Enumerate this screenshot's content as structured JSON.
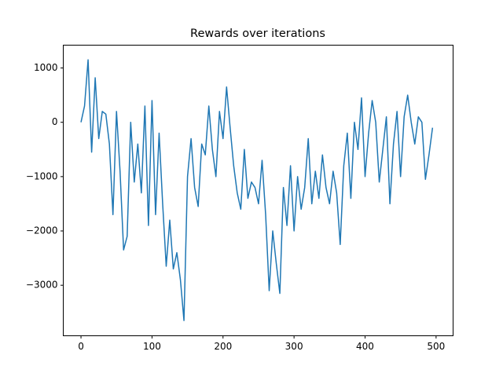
{
  "chart_data": {
    "type": "line",
    "title": "Rewards over iterations",
    "x": [
      0,
      5,
      10,
      15,
      20,
      25,
      30,
      35,
      40,
      45,
      50,
      55,
      60,
      65,
      70,
      75,
      80,
      85,
      90,
      95,
      100,
      105,
      110,
      115,
      120,
      125,
      130,
      135,
      140,
      145,
      150,
      155,
      160,
      165,
      170,
      175,
      180,
      185,
      190,
      195,
      200,
      205,
      210,
      215,
      220,
      225,
      230,
      235,
      240,
      245,
      250,
      255,
      260,
      265,
      270,
      275,
      280,
      285,
      290,
      295,
      300,
      305,
      310,
      315,
      320,
      325,
      330,
      335,
      340,
      345,
      350,
      355,
      360,
      365,
      370,
      375,
      380,
      385,
      390,
      395,
      400,
      405,
      410,
      415,
      420,
      425,
      430,
      435,
      440,
      445,
      450,
      455,
      460,
      465,
      470,
      475,
      480,
      485,
      490,
      495
    ],
    "values": [
      0,
      300,
      1150,
      -550,
      820,
      -300,
      200,
      150,
      -400,
      -1700,
      200,
      -900,
      -2350,
      -2100,
      0,
      -1100,
      -400,
      -1300,
      300,
      -1900,
      400,
      -1700,
      -200,
      -1500,
      -2650,
      -1800,
      -2700,
      -2400,
      -2900,
      -3650,
      -1000,
      -300,
      -1200,
      -1550,
      -400,
      -600,
      300,
      -500,
      -1000,
      200,
      -300,
      650,
      -100,
      -800,
      -1300,
      -1600,
      -500,
      -1400,
      -1100,
      -1200,
      -1500,
      -700,
      -1700,
      -3100,
      -2000,
      -2600,
      -3150,
      -1200,
      -1900,
      -800,
      -2000,
      -1000,
      -1600,
      -1200,
      -300,
      -1500,
      -900,
      -1400,
      -600,
      -1200,
      -1500,
      -900,
      -1300,
      -2250,
      -800,
      -200,
      -1400,
      0,
      -500,
      450,
      -1000,
      -200,
      400,
      0,
      -1100,
      -500,
      100,
      -1500,
      -400,
      200,
      -1000,
      100,
      500,
      0,
      -400,
      100,
      0,
      -1050,
      -600,
      -100
    ],
    "color": "#1f77b4",
    "xlim": [
      -24.95,
      523.95
    ],
    "xticks": [
      0,
      100,
      200,
      300,
      400,
      500
    ],
    "ylim": [
      -3930,
      1420
    ],
    "yticks": [
      {
        "value": -3000,
        "label": "−3000"
      },
      {
        "value": -2000,
        "label": "−2000"
      },
      {
        "value": -1000,
        "label": "−1000"
      },
      0,
      1000
    ]
  }
}
